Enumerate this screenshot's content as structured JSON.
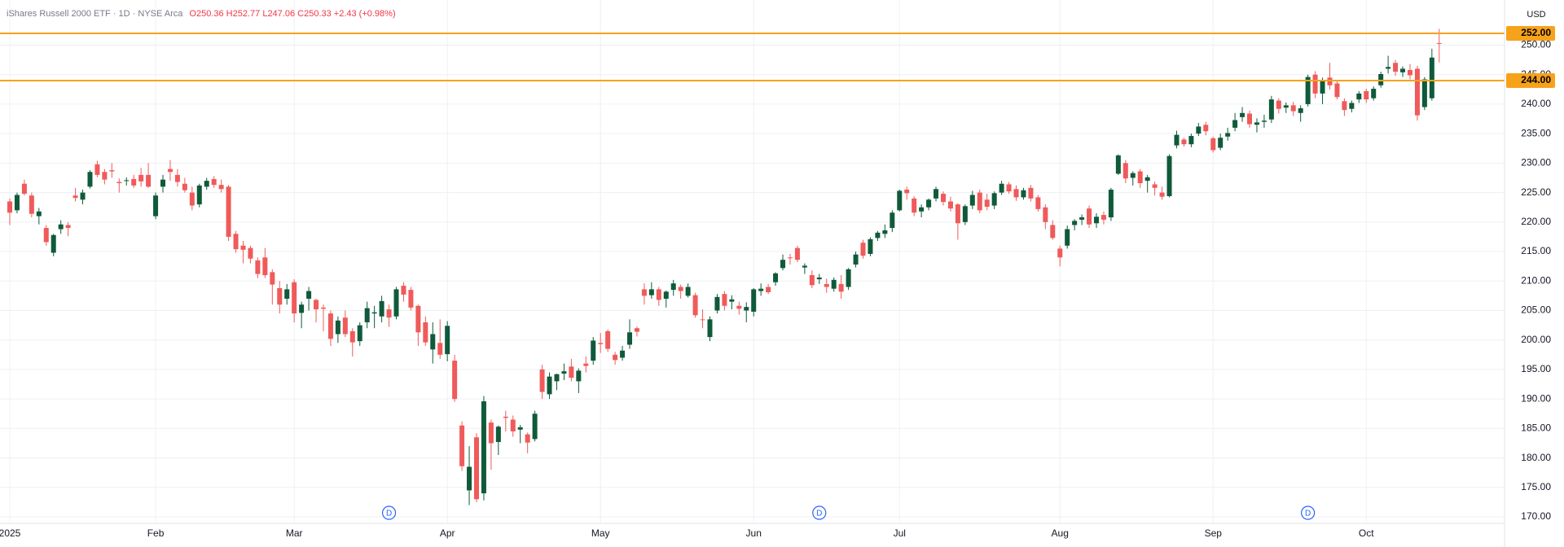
{
  "chart_data": {
    "type": "candlestick",
    "title": "iShares Russell 2000 ETF · 1D · NYSE Arca",
    "subtitle": "O250.36 H252.77 L247.06 C250.33 +2.43 (+0.98%)",
    "currency": "USD",
    "up_color": "#0f5a3a",
    "down_color": "#f05a5a",
    "grid": true,
    "categories": [
      "2025",
      null,
      null,
      null,
      null,
      null,
      null,
      null,
      null,
      null,
      null,
      null,
      null,
      null,
      null,
      null,
      null,
      null,
      null,
      null,
      "Feb",
      null,
      null,
      null,
      null,
      null,
      null,
      null,
      null,
      null,
      null,
      null,
      null,
      null,
      null,
      null,
      null,
      null,
      null,
      "Mar",
      null,
      null,
      null,
      null,
      null,
      null,
      null,
      null,
      null,
      null,
      null,
      null,
      null,
      null,
      null,
      null,
      null,
      null,
      null,
      null,
      "Apr",
      null,
      null,
      null,
      null,
      null,
      null,
      null,
      null,
      null,
      null,
      null,
      null,
      null,
      null,
      null,
      null,
      null,
      null,
      null,
      null,
      "May",
      null,
      null,
      null,
      null,
      null,
      null,
      null,
      null,
      null,
      null,
      null,
      null,
      null,
      null,
      null,
      null,
      null,
      null,
      null,
      null,
      "Jun",
      null,
      null,
      null,
      null,
      null,
      null,
      null,
      null,
      null,
      null,
      null,
      null,
      null,
      null,
      null,
      null,
      null,
      null,
      null,
      "Jul",
      null,
      null,
      null,
      null,
      null,
      null,
      null,
      null,
      null,
      null,
      null,
      null,
      null,
      null,
      null,
      null,
      null,
      null,
      null,
      null,
      null,
      "Aug",
      null,
      null,
      null,
      null,
      null,
      null,
      null,
      null,
      null,
      null,
      null,
      null,
      null,
      null,
      null,
      null,
      null,
      null,
      null,
      null,
      "Sep",
      null,
      null,
      null,
      null,
      null,
      null,
      null,
      null,
      null,
      null,
      null,
      null,
      null,
      null,
      null,
      null,
      null,
      null,
      null,
      null,
      "Oct",
      null,
      null,
      null,
      null,
      null,
      null,
      null,
      null,
      null,
      null
    ],
    "open": [
      223.5,
      222,
      226.5,
      224.5,
      221,
      219,
      214.8,
      218.8,
      219.5,
      224.5,
      223.8,
      226,
      229.8,
      228.5,
      228.8,
      226.8,
      227,
      227.3,
      228,
      228,
      221,
      226,
      229,
      228,
      226.5,
      225,
      223,
      226,
      227.3,
      226.3,
      226,
      218,
      216,
      215.6,
      213.5,
      214,
      211.5,
      208.8,
      207,
      209.8,
      204.6,
      207,
      206.8,
      205.5,
      204.5,
      201,
      203.8,
      201.5,
      199.8,
      203,
      204.5,
      204,
      205.2,
      204,
      209.2,
      208.5,
      205.8,
      203,
      198.4,
      199.5,
      197.6,
      196.5,
      185.5,
      174.5,
      183.5,
      174,
      186,
      182.7,
      187,
      186.5,
      184.8,
      184,
      183.2,
      195,
      190.8,
      193,
      194.3,
      195.5,
      193,
      196,
      196.5,
      199.5,
      201.5,
      197.5,
      197,
      199.2,
      202,
      208.6,
      207.6,
      208.6,
      207,
      208.5,
      209,
      207.5,
      207.6,
      203.5,
      200.5,
      205,
      207.8,
      206.5,
      205.8,
      205,
      204.8,
      208.3,
      209,
      209.8,
      212.2,
      214,
      215.6,
      212.3,
      211,
      210.3,
      209.5,
      208.7,
      209.5,
      209,
      212.8,
      216.5,
      214.6,
      217.3,
      218,
      219,
      222,
      225.5,
      224,
      221.8,
      222.5,
      224,
      224.8,
      223.5,
      223,
      220,
      222.8,
      225,
      223.8,
      222.8,
      225,
      226.4,
      225.6,
      224.2,
      225.8,
      224.2,
      222.5,
      219.5,
      215.5,
      216,
      219.5,
      220.4,
      222.3,
      219.8,
      221.2,
      220.8,
      228.2,
      230,
      227.5,
      228.6,
      227,
      226.4,
      225,
      224.4,
      233,
      234,
      233.2,
      235,
      236.5,
      234.2,
      232.6,
      234.5,
      236,
      237.8,
      238.4,
      236.5,
      237,
      237.4,
      240.6,
      239.4,
      239.8,
      238.5,
      240,
      245,
      241.8,
      244.5,
      243.5,
      240.5,
      239.2,
      240.8,
      242.2,
      241,
      243.2,
      246,
      247,
      245.4,
      245.8,
      246,
      239.5,
      241,
      250.36
    ],
    "high": [
      224,
      225,
      227.2,
      225,
      222.4,
      219.5,
      218,
      220.3,
      220,
      225.8,
      225.5,
      228.8,
      230.4,
      229,
      230,
      227.4,
      227.6,
      228,
      229.2,
      230,
      225,
      228,
      230.5,
      229,
      227.5,
      226,
      226.5,
      227.5,
      227.8,
      227.2,
      226.3,
      218.5,
      216.8,
      216,
      214,
      215.6,
      212,
      210,
      209.5,
      210.3,
      206.5,
      209,
      207,
      206,
      205,
      204,
      205,
      202,
      203,
      206.5,
      205.8,
      207.5,
      206,
      209,
      209.8,
      209,
      206,
      204,
      203,
      203.5,
      203.2,
      197.5,
      186.2,
      182,
      184.2,
      190.5,
      186.5,
      185.5,
      188,
      187.2,
      185.6,
      184.3,
      188,
      195.8,
      194.5,
      194.3,
      196,
      196.8,
      195.2,
      197.2,
      200.5,
      201.2,
      201.8,
      198,
      199,
      203.5,
      202.3,
      209.6,
      209.8,
      209,
      208.4,
      210.2,
      209.4,
      209.6,
      208,
      205.2,
      204,
      207.8,
      208.3,
      207.6,
      206.5,
      206.4,
      208.8,
      209.6,
      209.5,
      211.5,
      214.5,
      214.6,
      216,
      213,
      211.8,
      211.2,
      210.4,
      210.6,
      211,
      212.2,
      215,
      217,
      217.4,
      218.5,
      219.6,
      222,
      225.5,
      226,
      224.4,
      223,
      224,
      226,
      225.2,
      224.3,
      223.2,
      223,
      225.3,
      225.5,
      224.8,
      225.2,
      227,
      226.8,
      226.2,
      225.8,
      226.3,
      224.6,
      223,
      220.3,
      216,
      219.4,
      220.5,
      221.3,
      222.8,
      221.5,
      221.8,
      225.8,
      231.5,
      230.5,
      228.6,
      229,
      228,
      226.9,
      226,
      231.5,
      235.5,
      234.3,
      235,
      236.8,
      237,
      234.5,
      235,
      236,
      238.5,
      239.5,
      238.9,
      237.6,
      238.2,
      241.4,
      241,
      240.3,
      240.4,
      239.8,
      245,
      245.6,
      244.5,
      247,
      244,
      241,
      240.6,
      242.2,
      242.6,
      243,
      245.5,
      248.2,
      247.5,
      246.4,
      246.8,
      246.5,
      244.6,
      249.4,
      252.77
    ],
    "low": [
      219.5,
      221.5,
      224.5,
      220.8,
      219.6,
      216,
      214.2,
      218,
      217.6,
      223.5,
      223,
      225.7,
      227.6,
      226.4,
      227.5,
      225,
      226.2,
      225.8,
      226,
      225.8,
      220.5,
      225,
      227,
      226,
      225,
      222,
      222.5,
      225.5,
      225.8,
      225,
      216.8,
      214.8,
      213,
      213,
      210.5,
      210.5,
      206,
      204.5,
      206,
      203,
      202,
      205,
      203,
      201.5,
      199,
      199.5,
      200.5,
      197.2,
      199,
      202,
      202,
      203,
      202.2,
      203.5,
      206.5,
      205,
      199,
      199,
      196,
      196.8,
      196.4,
      189.5,
      177.8,
      172,
      172.5,
      172.8,
      178,
      180.5,
      184.5,
      183.6,
      182.5,
      180.8,
      182.8,
      190,
      190,
      191.5,
      193.2,
      193,
      191,
      194.5,
      195.8,
      197.8,
      198,
      195.8,
      196.5,
      198.5,
      200.6,
      206,
      207,
      205.8,
      205.5,
      207.5,
      207,
      207.2,
      203.8,
      202,
      199.8,
      204.5,
      205,
      205.2,
      204.3,
      203,
      204,
      207.5,
      207.8,
      209.2,
      211.8,
      212.8,
      213.2,
      211.2,
      208.8,
      209.5,
      208,
      208.2,
      207,
      208.5,
      212.3,
      213.8,
      214.2,
      216.8,
      217.3,
      218.3,
      221.8,
      223.8,
      221,
      220.8,
      222,
      223.5,
      222.8,
      221.8,
      217,
      219.5,
      222.2,
      221.5,
      222,
      222.2,
      224.6,
      224.8,
      223.6,
      223.8,
      223.5,
      221.8,
      218.8,
      217,
      212.5,
      215.5,
      218.6,
      219.5,
      219,
      219,
      219.6,
      220.2,
      228,
      226.6,
      226.2,
      225.8,
      225,
      224.5,
      223.8,
      224.2,
      232.5,
      232.8,
      232.7,
      234.6,
      234.7,
      231.8,
      232.2,
      233.8,
      235.4,
      237,
      236,
      235.2,
      236,
      236.8,
      238.4,
      238.5,
      238,
      237,
      239.6,
      241,
      240,
      242.5,
      240.8,
      238,
      238.6,
      240.2,
      240.2,
      240.6,
      242.8,
      245.2,
      244.8,
      244.6,
      244.2,
      237.2,
      239,
      240.6,
      247.06
    ],
    "close": [
      221.6,
      224.6,
      224.8,
      221.4,
      221.8,
      216.6,
      217.8,
      219.6,
      219,
      224.1,
      225,
      228.5,
      228,
      227.2,
      228.6,
      226.6,
      227.1,
      226.2,
      226.9,
      226,
      224.5,
      227.2,
      228.5,
      226.8,
      225.4,
      222.8,
      226.2,
      227,
      226.3,
      225.6,
      217.5,
      215.4,
      215.3,
      213.8,
      211.2,
      211,
      209.4,
      206,
      208.6,
      204.5,
      206,
      208.3,
      205.2,
      205.3,
      200.2,
      203.3,
      201,
      199.6,
      202.5,
      205.4,
      204.7,
      206.6,
      203.8,
      208.6,
      207.7,
      205.5,
      201.3,
      199.6,
      201,
      197.5,
      202.4,
      190,
      178.6,
      178.5,
      173,
      189.6,
      182.5,
      185.3,
      186.8,
      184.5,
      185.2,
      182.6,
      187.5,
      191.2,
      193.8,
      194.2,
      194.7,
      193.6,
      194.8,
      195.6,
      199.9,
      199.3,
      198.5,
      196.6,
      198.2,
      201.3,
      201.4,
      207.5,
      208.6,
      206.8,
      208.2,
      209.6,
      208.3,
      209,
      204.2,
      203.4,
      203.5,
      207.3,
      205.8,
      206.9,
      205.3,
      205.6,
      208.6,
      208.7,
      208.1,
      211.3,
      213.6,
      213.9,
      213.6,
      212.6,
      209.3,
      210.6,
      209,
      210.2,
      208.2,
      212,
      214.5,
      214.3,
      217.1,
      218.2,
      218.6,
      221.6,
      225.3,
      224.9,
      221.6,
      222.5,
      223.8,
      225.6,
      223.4,
      222.3,
      219.8,
      222.7,
      224.6,
      222,
      222.6,
      224.9,
      226.5,
      225.2,
      224.2,
      225.4,
      224,
      222.2,
      220,
      217.3,
      214,
      218.8,
      220.2,
      220.8,
      219.6,
      220.9,
      220.4,
      225.5,
      231.3,
      227.4,
      228.3,
      226.6,
      227.6,
      225.8,
      224.3,
      231.2,
      234.8,
      233.2,
      234.6,
      236.2,
      235.4,
      232.2,
      234.3,
      235.1,
      237.3,
      238.5,
      236.6,
      236.9,
      237.2,
      240.8,
      239.2,
      239.8,
      238.8,
      239.3,
      244.6,
      241.8,
      244,
      243.2,
      241.2,
      239,
      240.2,
      241.8,
      240.8,
      242.6,
      245.1,
      246.3,
      245.5,
      246,
      244.9,
      238.1,
      244.2,
      247.9,
      250.33
    ],
    "ylim": [
      168.9,
      257.66
    ],
    "yticks": [
      {
        "value": 170,
        "label": "170.00"
      },
      {
        "value": 175,
        "label": "175.00"
      },
      {
        "value": 180,
        "label": "180.00"
      },
      {
        "value": 185,
        "label": "185.00"
      },
      {
        "value": 190,
        "label": "190.00"
      },
      {
        "value": 195,
        "label": "195.00"
      },
      {
        "value": 200,
        "label": "200.00"
      },
      {
        "value": 205,
        "label": "205.00"
      },
      {
        "value": 210,
        "label": "210.00"
      },
      {
        "value": 215,
        "label": "215.00"
      },
      {
        "value": 220,
        "label": "220.00"
      },
      {
        "value": 225,
        "label": "225.00"
      },
      {
        "value": 230,
        "label": "230.00"
      },
      {
        "value": 235,
        "label": "235.00"
      },
      {
        "value": 240,
        "label": "240.00"
      },
      {
        "value": 245,
        "label": "245.00"
      },
      {
        "value": 250,
        "label": "250.00"
      }
    ],
    "price_lines": [
      {
        "value": 252,
        "label": "252.00",
        "color": "#f7a21b"
      },
      {
        "value": 244,
        "label": "244.00",
        "color": "#f7a21b"
      }
    ],
    "events": [
      {
        "label": "D",
        "category_index": 52
      },
      {
        "label": "D",
        "category_index": 111
      },
      {
        "label": "D",
        "category_index": 178
      }
    ]
  }
}
